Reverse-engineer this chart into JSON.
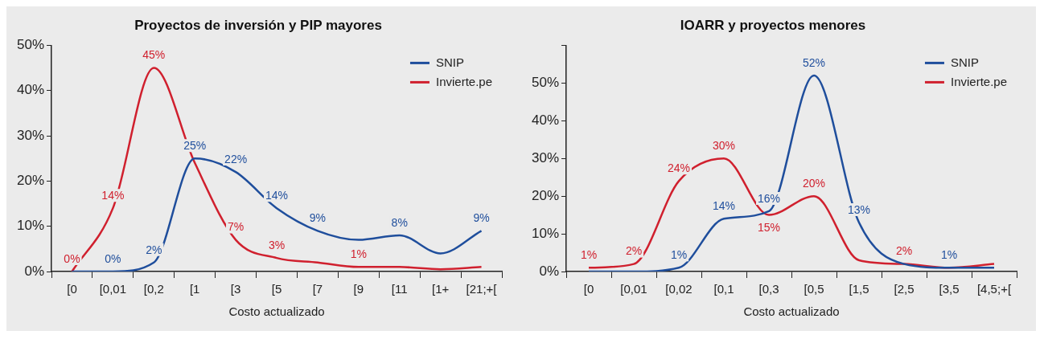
{
  "chart_data": [
    {
      "type": "line",
      "title": "Proyectos de inversión y PIP mayores",
      "xlabel": "Costo actualizado",
      "categories": [
        "[0",
        "[0,01",
        "[0,2",
        "[1",
        "[3",
        "[5",
        "[7",
        "[9",
        "[11",
        "[1+",
        "[21;+["
      ],
      "series": [
        {
          "name": "SNIP",
          "color": "#1f4e9c",
          "values": [
            0,
            0,
            2,
            25,
            22,
            14,
            9,
            7,
            8,
            4,
            9
          ],
          "value_labels": [
            null,
            "0%",
            "2%",
            "25%",
            "22%",
            "14%",
            "9%",
            null,
            "8%",
            null,
            "9%"
          ]
        },
        {
          "name": "Invierte.pe",
          "color": "#d0202e",
          "values": [
            0,
            14,
            45,
            24,
            7,
            3,
            2,
            1,
            1,
            0.5,
            1
          ],
          "value_labels": [
            "0%",
            "14%",
            "45%",
            null,
            "7%",
            "3%",
            null,
            "1%",
            null,
            null,
            null
          ]
        }
      ],
      "ylim": [
        0,
        50
      ],
      "yticks": [
        {
          "value": 0,
          "label": "0%"
        },
        {
          "value": 10,
          "label": "10%"
        },
        {
          "value": 20,
          "label": "20%"
        },
        {
          "value": 30,
          "label": "30%"
        },
        {
          "value": 40,
          "label": "40%"
        },
        {
          "value": 50,
          "label": "50%"
        }
      ],
      "grid": false,
      "legend": "top right",
      "marker": "none"
    },
    {
      "type": "line",
      "title": "IOARR y proyectos menores",
      "xlabel": "Costo actualizado",
      "categories": [
        "[0",
        "[0,01",
        "[0,02",
        "[0,1",
        "[0,3",
        "[0,5",
        "[1,5",
        "[2,5",
        "[3,5",
        "[4,5;+["
      ],
      "series": [
        {
          "name": "SNIP",
          "color": "#1f4e9c",
          "values": [
            0,
            0,
            1,
            14,
            16,
            52,
            13,
            2,
            1,
            1
          ],
          "value_labels": [
            null,
            null,
            "1%",
            "14%",
            "16%",
            "52%",
            "13%",
            null,
            "1%",
            null
          ]
        },
        {
          "name": "Invierte.pe",
          "color": "#d0202e",
          "values": [
            1,
            2,
            24,
            30,
            15,
            20,
            3,
            2,
            1,
            2
          ],
          "value_labels": [
            "1%",
            "2%",
            "24%",
            "30%",
            "15%",
            "20%",
            null,
            "2%",
            null,
            null
          ]
        }
      ],
      "ylim": [
        0,
        60
      ],
      "yticks": [
        {
          "value": 0,
          "label": "0%"
        },
        {
          "value": 10,
          "label": "10%"
        },
        {
          "value": 20,
          "label": "20%"
        },
        {
          "value": 30,
          "label": "30%"
        },
        {
          "value": 40,
          "label": "40%"
        },
        {
          "value": 50,
          "label": "50%"
        },
        {
          "value": 60,
          "label": null
        }
      ],
      "grid": false,
      "legend": "top right",
      "marker": "none"
    }
  ]
}
